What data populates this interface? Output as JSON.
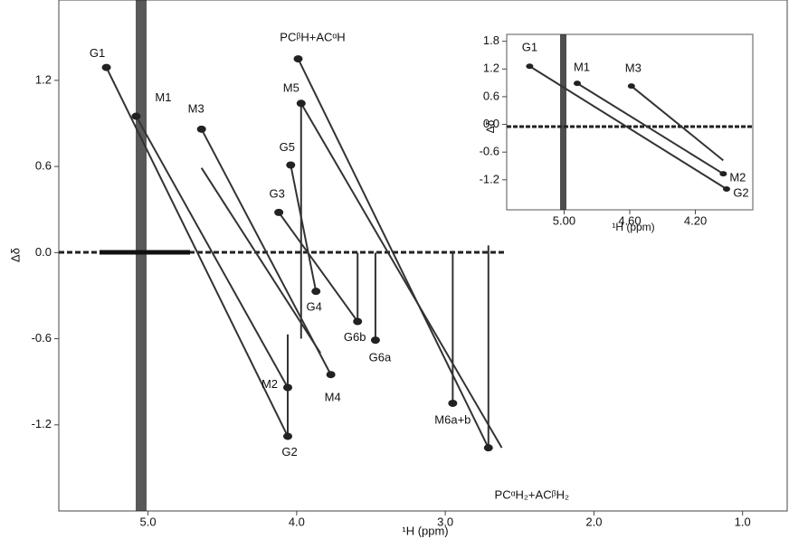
{
  "chart_data": [
    {
      "type": "scatter",
      "x_label": "¹H (ppm)",
      "y_label": "Δδ",
      "xlim": [
        5.6,
        0.7
      ],
      "ylim": [
        -1.8,
        1.76
      ],
      "xticks": [
        {
          "value": 5,
          "label": "5.0"
        },
        {
          "value": 4,
          "label": "4.0"
        },
        {
          "value": 3,
          "label": "3.0"
        },
        {
          "value": 2,
          "label": "2.0"
        },
        {
          "value": 1,
          "label": "1.0"
        }
      ],
      "yticks": [
        1.2,
        0.6,
        {
          "value": 0,
          "label": "0.0"
        },
        -0.6,
        -1.2
      ],
      "x": [
        5.28,
        5.08,
        4.64,
        4.06,
        4.06,
        3.77,
        3.99,
        3.97,
        4.04,
        4.12,
        3.87,
        3.59,
        3.47,
        2.95,
        2.71
      ],
      "values": [
        1.29,
        0.95,
        0.86,
        -1.28,
        -0.94,
        -0.85,
        1.35,
        1.04,
        0.61,
        0.28,
        -0.27,
        -0.48,
        -0.61,
        -1.05,
        -1.36
      ],
      "point_labels": [
        "G1",
        "M1",
        "M3",
        "G2",
        "M2",
        "M4",
        "PCᵝH+ACᵅH",
        "M5",
        "G5",
        "G3",
        "G4",
        "G6b",
        "G6a",
        "M6a+b",
        "PCᵅH₂+ACᵝH₂"
      ],
      "lines": [
        {
          "x": [
            5.28,
            4.06
          ],
          "values": [
            1.29,
            -1.28
          ]
        },
        {
          "x": [
            5.08,
            4.06
          ],
          "values": [
            0.95,
            -0.94
          ]
        },
        {
          "x": [
            4.64,
            3.77
          ],
          "values": [
            0.86,
            -0.85
          ]
        },
        {
          "x": [
            4.64,
            3.84
          ],
          "values": [
            0.59,
            -0.7
          ]
        },
        {
          "x": [
            3.99,
            2.71
          ],
          "values": [
            1.35,
            -1.36
          ]
        },
        {
          "x": [
            3.97,
            2.62
          ],
          "values": [
            1.04,
            -1.36
          ]
        },
        {
          "x": [
            4.06,
            4.06
          ],
          "values": [
            -0.57,
            -1.28
          ]
        },
        {
          "x": [
            3.97,
            3.97
          ],
          "values": [
            1.04,
            -0.6
          ]
        },
        {
          "x": [
            4.04,
            3.87
          ],
          "values": [
            0.61,
            -0.27
          ]
        },
        {
          "x": [
            4.12,
            3.59
          ],
          "values": [
            0.28,
            -0.48
          ]
        },
        {
          "x": [
            2.95,
            2.95
          ],
          "values": [
            0.0,
            -1.05
          ]
        },
        {
          "x": [
            2.71,
            2.71
          ],
          "values": [
            0.05,
            -1.36
          ]
        },
        {
          "x": [
            3.47,
            3.47
          ],
          "values": [
            0.0,
            -0.61
          ]
        },
        {
          "x": [
            3.59,
            3.59
          ],
          "values": [
            0.0,
            -0.48
          ]
        }
      ]
    },
    {
      "type": "scatter",
      "x_label": "¹H (ppm)",
      "y_label": "Δδ",
      "xlim": [
        5.35,
        3.85
      ],
      "ylim": [
        -1.85,
        1.95
      ],
      "xticks": [
        {
          "value": 5,
          "label": "5.00"
        },
        {
          "value": 4.6,
          "label": "4.60"
        },
        {
          "value": 4.2,
          "label": "4.20"
        }
      ],
      "yticks": [
        1.8,
        1.2,
        0.6,
        {
          "value": 0,
          "label": "0.0"
        },
        -0.6,
        -1.2
      ],
      "x": [
        5.21,
        4.92,
        4.59,
        4.03,
        4.01
      ],
      "values": [
        1.26,
        0.89,
        0.83,
        -1.07,
        -1.4
      ],
      "point_labels": [
        "G1",
        "M1",
        "M3",
        "M2",
        "G2"
      ],
      "lines": [
        {
          "x": [
            5.21,
            4.01
          ],
          "values": [
            1.26,
            -1.4
          ]
        },
        {
          "x": [
            4.92,
            4.03
          ],
          "values": [
            0.89,
            -1.07
          ]
        },
        {
          "x": [
            4.59,
            4.03
          ],
          "values": [
            0.83,
            -0.78
          ]
        }
      ]
    }
  ]
}
